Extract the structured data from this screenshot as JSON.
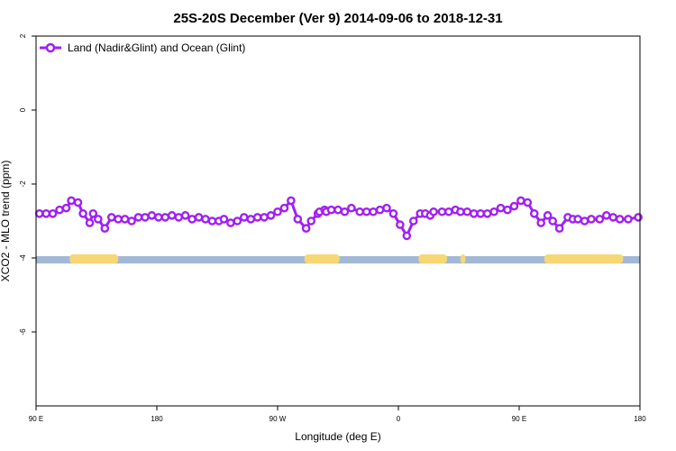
{
  "chart_data": {
    "type": "line",
    "title": "25S-20S December (Ver 9)   2014-09-06 to 2018-12-31",
    "xlabel": "Longitude (deg E)",
    "ylabel": "XCO2 - MLO trend (ppm)",
    "xlim": [
      90,
      450
    ],
    "ylim": [
      -8,
      2
    ],
    "x_ticks": [
      {
        "value": 90,
        "label": "90 E"
      },
      {
        "value": 162,
        "label": "180"
      },
      {
        "value": 234,
        "label": "90 W"
      },
      {
        "value": 306,
        "label": "0"
      },
      {
        "value": 378,
        "label": "90 E"
      },
      {
        "value": 450,
        "label": "180"
      }
    ],
    "y_ticks": [
      {
        "value": 2,
        "label": "2"
      },
      {
        "value": 0,
        "label": "0"
      },
      {
        "value": -2,
        "label": "-2"
      },
      {
        "value": -4,
        "label": "-4"
      },
      {
        "value": -6,
        "label": "-6"
      }
    ],
    "legend": {
      "position": "top-left",
      "label": "Land (Nadir&Glint) and Ocean (Glint)"
    },
    "series": [
      {
        "name": "Land (Nadir&Glint) and Ocean (Glint)",
        "color": "#a020f0",
        "x": [
          92,
          96,
          100,
          104,
          108,
          111,
          115,
          118,
          122,
          124,
          127,
          131,
          135,
          139,
          143,
          147,
          151,
          155,
          159,
          163,
          167,
          171,
          175,
          179,
          183,
          187,
          191,
          195,
          199,
          202,
          206,
          210,
          214,
          218,
          222,
          226,
          230,
          234,
          238,
          242,
          246,
          251,
          254,
          258,
          259,
          262,
          263,
          266,
          270,
          274,
          278,
          283,
          287,
          291,
          295,
          299,
          303,
          307,
          311,
          315,
          319,
          322,
          325,
          327,
          332,
          336,
          340,
          343,
          347,
          351,
          355,
          359,
          363,
          367,
          371,
          375,
          379,
          383,
          387,
          391,
          395,
          398,
          402,
          407,
          410,
          413,
          417,
          421,
          426,
          430,
          434,
          438,
          443,
          449
        ],
        "y": [
          -2.8,
          -2.8,
          -2.8,
          -2.7,
          -2.65,
          -2.45,
          -2.5,
          -2.8,
          -3.05,
          -2.8,
          -2.95,
          -3.2,
          -2.9,
          -2.95,
          -2.95,
          -3.0,
          -2.9,
          -2.9,
          -2.85,
          -2.9,
          -2.9,
          -2.85,
          -2.9,
          -2.85,
          -2.95,
          -2.9,
          -2.95,
          -3.0,
          -3.0,
          -2.95,
          -3.05,
          -3.0,
          -2.9,
          -2.95,
          -2.9,
          -2.9,
          -2.85,
          -2.75,
          -2.65,
          -2.45,
          -2.95,
          -3.2,
          -3.0,
          -2.8,
          -2.75,
          -2.7,
          -2.75,
          -2.7,
          -2.7,
          -2.75,
          -2.65,
          -2.75,
          -2.75,
          -2.75,
          -2.7,
          -2.65,
          -2.8,
          -3.1,
          -3.4,
          -3.0,
          -2.8,
          -2.8,
          -2.85,
          -2.75,
          -2.75,
          -2.75,
          -2.7,
          -2.75,
          -2.75,
          -2.8,
          -2.8,
          -2.8,
          -2.75,
          -2.65,
          -2.7,
          -2.6,
          -2.45,
          -2.5,
          -2.8,
          -3.05,
          -2.85,
          -3.0,
          -3.2,
          -2.9,
          -2.95,
          -2.95,
          -3.0,
          -2.95,
          -2.95,
          -2.85,
          -2.9,
          -2.95,
          -2.95,
          -2.9
        ]
      }
    ],
    "surface_band": {
      "description_y_range": [
        -4.15,
        -3.95
      ],
      "ocean_color": "#a3b8d6",
      "land_color": "#f7d774",
      "land_segments_x": [
        [
          110,
          139
        ],
        [
          250,
          271
        ],
        [
          318,
          335
        ],
        [
          343,
          346
        ],
        [
          393,
          440
        ]
      ]
    }
  }
}
